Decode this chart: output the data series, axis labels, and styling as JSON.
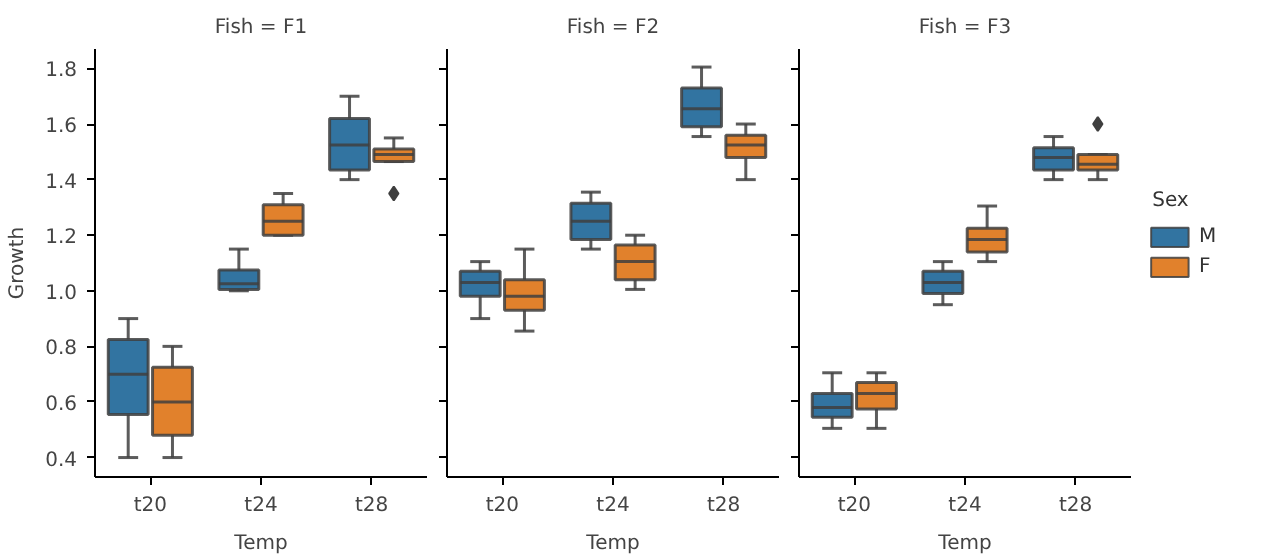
{
  "chart_data": [
    {
      "type": "box",
      "title": "Fish = F1",
      "xlabel": "Temp",
      "ylabel": "Growth",
      "categories": [
        "t20",
        "t24",
        "t28"
      ],
      "ylim": [
        0.33,
        1.87
      ],
      "yticks": [
        0.4,
        0.6,
        0.8,
        {
          "value": 1,
          "label": "1.0"
        },
        1.2,
        1.4,
        1.6,
        1.8
      ],
      "series": [
        {
          "color": "#3274a1",
          "boxes": [
            {
              "low": 0.4,
              "q1": 0.555,
              "median": 0.7,
              "q3": 0.825,
              "high": 0.9
            },
            {
              "low": 1.0,
              "q1": 1.005,
              "median": 1.025,
              "q3": 1.075,
              "high": 1.15
            },
            {
              "low": 1.4,
              "q1": 1.435,
              "median": 1.525,
              "q3": 1.62,
              "high": 1.7
            }
          ]
        },
        {
          "color": "#e1812c",
          "boxes": [
            {
              "low": 0.4,
              "q1": 0.48,
              "median": 0.6,
              "q3": 0.725,
              "high": 0.8
            },
            {
              "low": 1.2,
              "q1": 1.2,
              "median": 1.25,
              "q3": 1.31,
              "high": 1.35
            },
            {
              "low": 1.465,
              "q1": 1.465,
              "median": 1.49,
              "q3": 1.51,
              "high": 1.55,
              "outliers": [
                1.35
              ]
            }
          ]
        }
      ]
    },
    {
      "type": "box",
      "title": "Fish = F2",
      "xlabel": "Temp",
      "categories": [
        "t20",
        "t24",
        "t28"
      ],
      "ylim": [
        0.33,
        1.87
      ],
      "yticks": [
        0.4,
        0.6,
        0.8,
        1.0,
        1.2,
        1.4,
        1.6,
        1.8
      ],
      "tick_labels": "x",
      "series": [
        {
          "color": "#3274a1",
          "boxes": [
            {
              "low": 0.9,
              "q1": 0.98,
              "median": 1.03,
              "q3": 1.07,
              "high": 1.105
            },
            {
              "low": 1.15,
              "q1": 1.185,
              "median": 1.25,
              "q3": 1.315,
              "high": 1.355
            },
            {
              "low": 1.555,
              "q1": 1.59,
              "median": 1.655,
              "q3": 1.73,
              "high": 1.805
            }
          ]
        },
        {
          "color": "#e1812c",
          "boxes": [
            {
              "low": 0.855,
              "q1": 0.93,
              "median": 0.98,
              "q3": 1.04,
              "high": 1.15
            },
            {
              "low": 1.005,
              "q1": 1.04,
              "median": 1.105,
              "q3": 1.165,
              "high": 1.2
            },
            {
              "low": 1.4,
              "q1": 1.48,
              "median": 1.525,
              "q3": 1.56,
              "high": 1.6
            }
          ]
        }
      ]
    },
    {
      "type": "box",
      "title": "Fish = F3",
      "xlabel": "Temp",
      "categories": [
        "t20",
        "t24",
        "t28"
      ],
      "ylim": [
        0.33,
        1.87
      ],
      "yticks": [
        0.4,
        0.6,
        0.8,
        1.0,
        1.2,
        1.4,
        1.6,
        1.8
      ],
      "tick_labels": "x",
      "legend": "right",
      "legend_title": "Sex",
      "series": [
        {
          "name": "M",
          "color": "#3274a1",
          "boxes": [
            {
              "low": 0.505,
              "q1": 0.545,
              "median": 0.58,
              "q3": 0.63,
              "high": 0.705
            },
            {
              "low": 0.95,
              "q1": 0.99,
              "median": 1.03,
              "q3": 1.07,
              "high": 1.105
            },
            {
              "low": 1.4,
              "q1": 1.435,
              "median": 1.48,
              "q3": 1.515,
              "high": 1.555
            }
          ]
        },
        {
          "name": "F",
          "color": "#e1812c",
          "boxes": [
            {
              "low": 0.505,
              "q1": 0.575,
              "median": 0.63,
              "q3": 0.67,
              "high": 0.705
            },
            {
              "low": 1.105,
              "q1": 1.14,
              "median": 1.185,
              "q3": 1.225,
              "high": 1.305
            },
            {
              "low": 1.4,
              "q1": 1.435,
              "median": 1.455,
              "q3": 1.49,
              "high": 1.49,
              "outliers": [
                1.6
              ]
            }
          ]
        }
      ]
    }
  ]
}
